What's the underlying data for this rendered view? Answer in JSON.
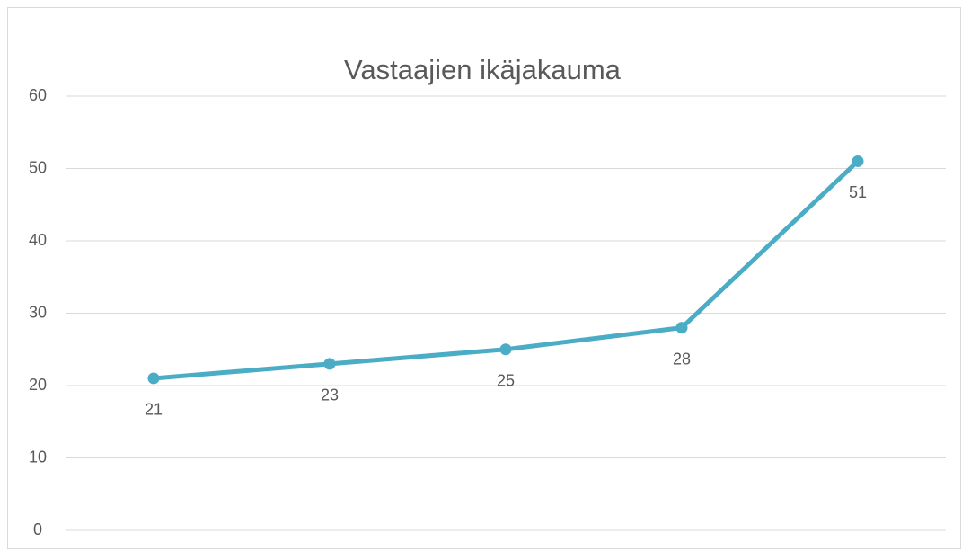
{
  "chart_data": {
    "type": "line",
    "title": "Vastaajien ikäjakauma",
    "categories": [
      null,
      null,
      null,
      null,
      null
    ],
    "values": [
      21,
      23,
      25,
      28,
      51
    ],
    "color": "#4bacc6",
    "ylim": [
      0,
      60
    ],
    "yticks": [
      0,
      10,
      20,
      30,
      40,
      50,
      60
    ],
    "grid": true
  }
}
